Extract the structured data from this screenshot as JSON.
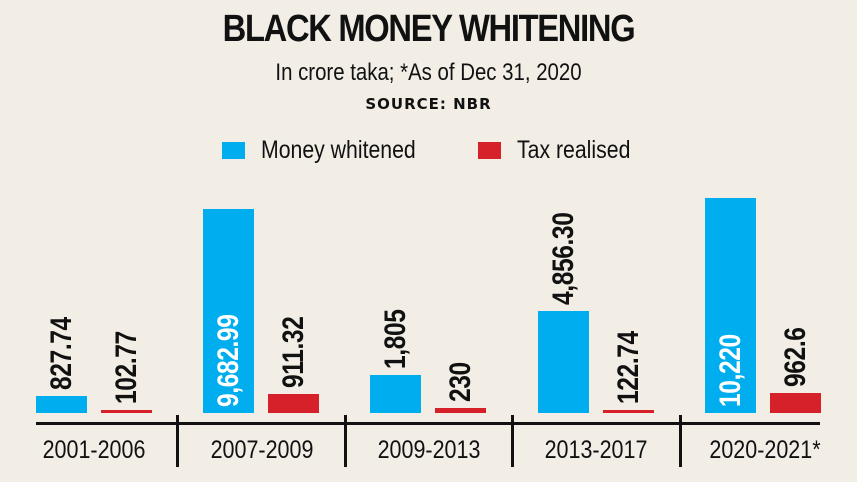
{
  "header": {
    "title": "BLACK MONEY WHITENING",
    "subtitle": "In crore taka; *As of Dec 31, 2020",
    "source": "SOURCE: NBR"
  },
  "legend": [
    {
      "label": "Money whitened",
      "color": "#00aeef"
    },
    {
      "label": "Tax realised",
      "color": "#d7212a"
    }
  ],
  "categories": [
    "2001-2006",
    "2007-2009",
    "2009-2013",
    "2013-2017",
    "2020-2021*"
  ],
  "labels": {
    "money": [
      "827.74",
      "9,682.99",
      "1,805",
      "4,856.30",
      "10,220"
    ],
    "tax": [
      "102.77",
      "911.32",
      "230",
      "122.74",
      "962.6"
    ]
  },
  "chart_data": {
    "type": "bar",
    "title": "BLACK MONEY WHITENING",
    "subtitle": "In crore taka; *As of Dec 31, 2020",
    "source": "SOURCE: NBR",
    "xlabel": "",
    "ylabel": "In crore taka",
    "categories": [
      "2001-2006",
      "2007-2009",
      "2009-2013",
      "2013-2017",
      "2020-2021*"
    ],
    "series": [
      {
        "name": "Money whitened",
        "color": "#00aeef",
        "values": [
          827.74,
          9682.99,
          1805,
          4856.3,
          10220
        ]
      },
      {
        "name": "Tax realised",
        "color": "#d7212a",
        "values": [
          102.77,
          911.32,
          230,
          122.74,
          962.6
        ]
      }
    ],
    "grid": false,
    "legend_position": "top",
    "ylim": [
      0,
      10220
    ],
    "annotations": [
      "*As of Dec 31, 2020"
    ]
  }
}
